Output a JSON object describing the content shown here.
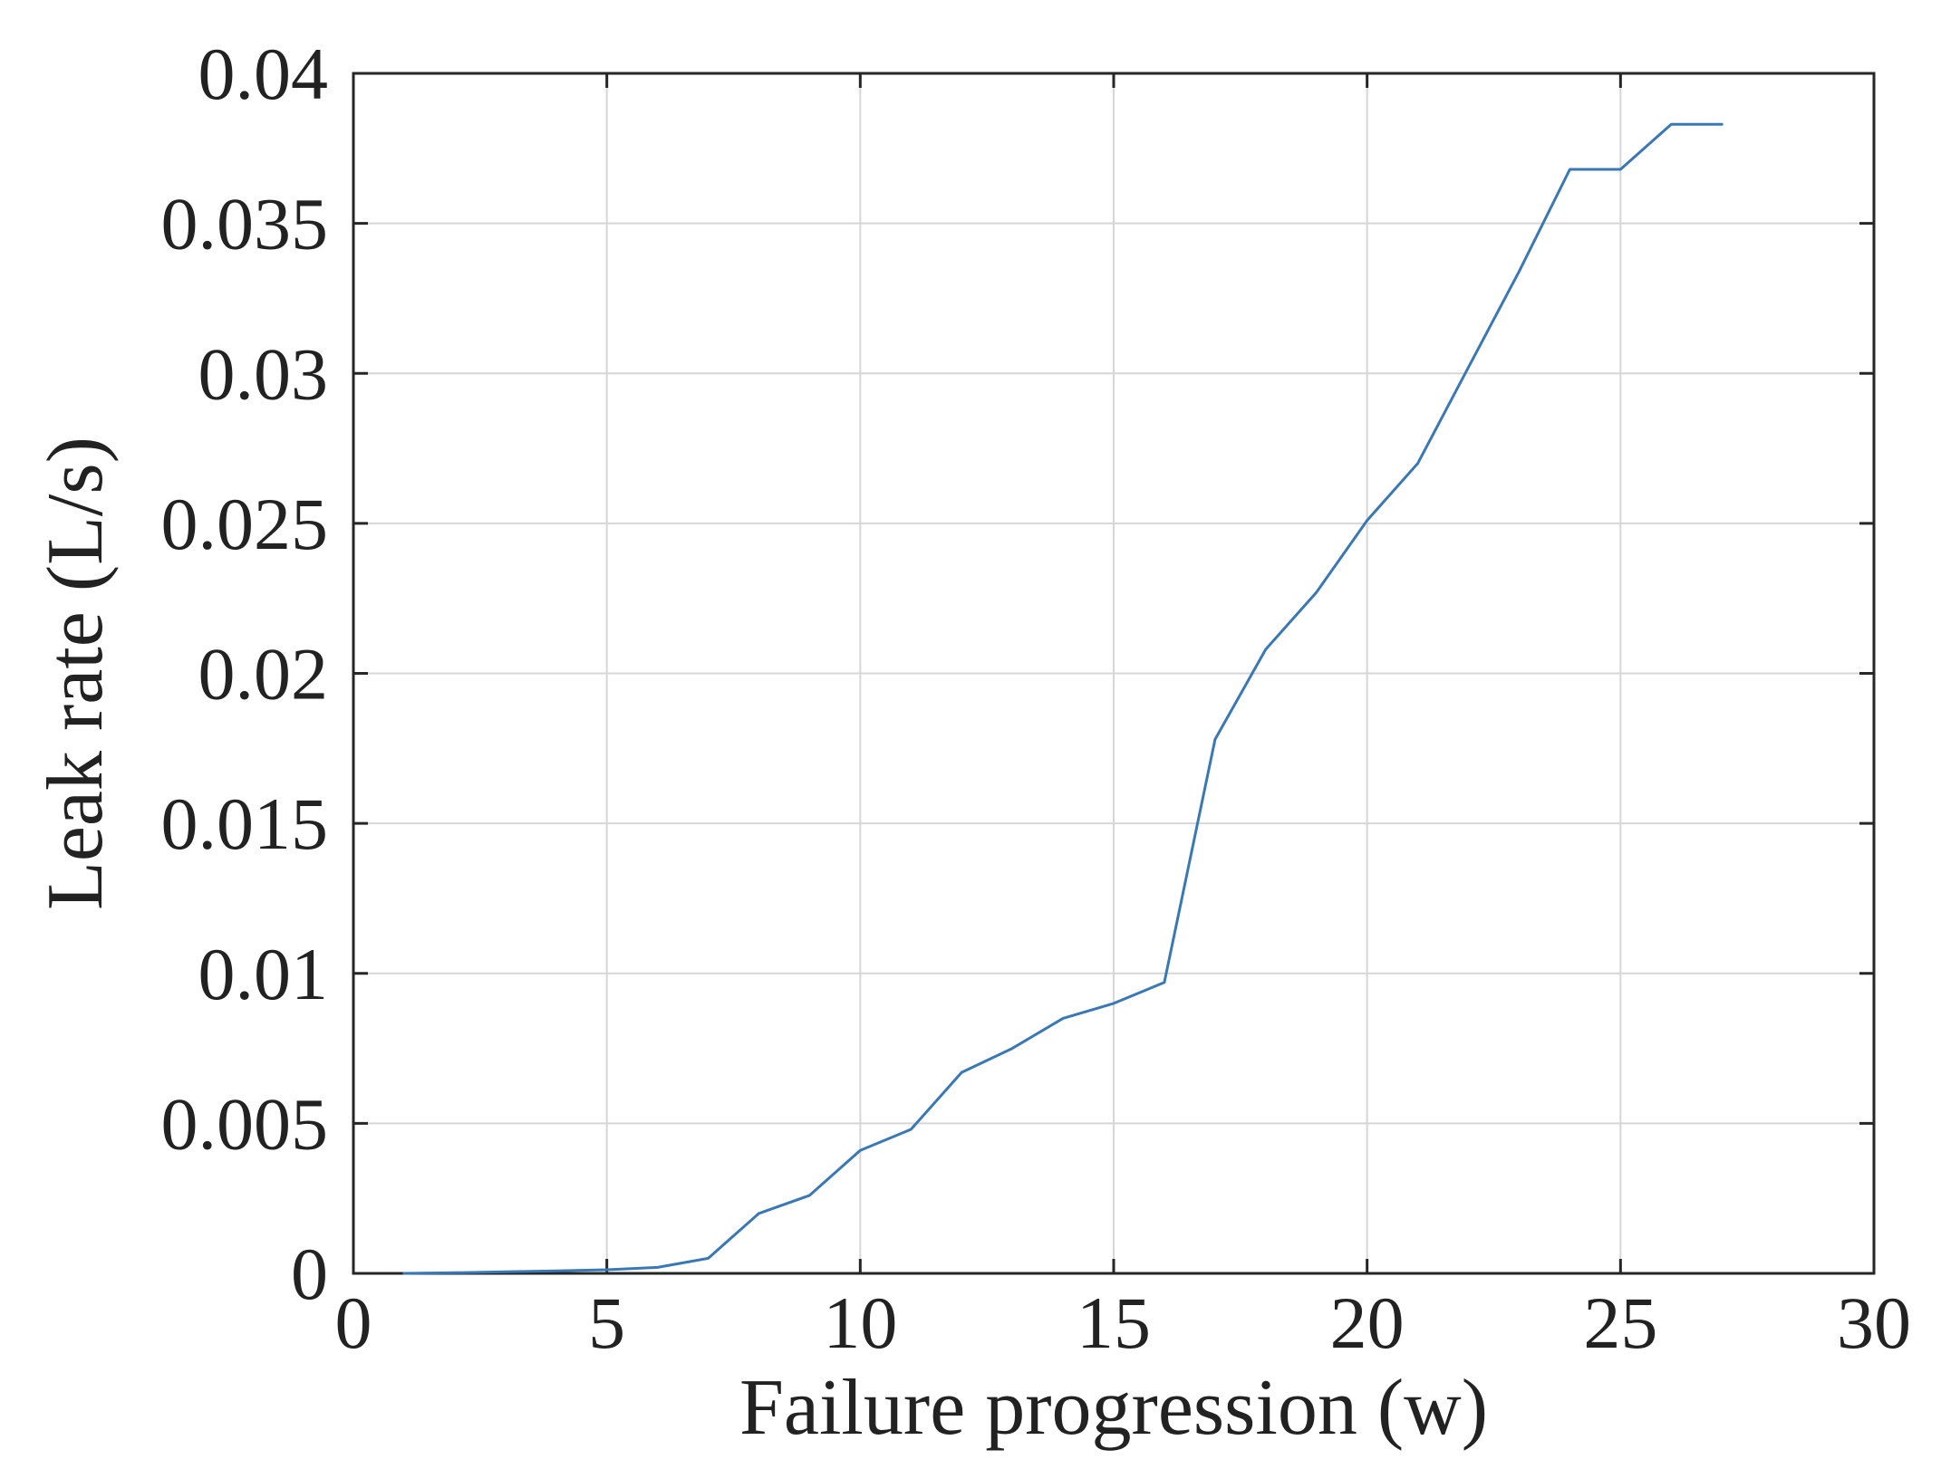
{
  "chart_data": {
    "type": "line",
    "title": "",
    "xlabel": "Failure progression (w)",
    "ylabel": "Leak rate (L/s)",
    "xlim": [
      0,
      30
    ],
    "ylim": [
      0,
      0.04
    ],
    "grid": true,
    "x_ticks": [
      0,
      5,
      10,
      15,
      20,
      25,
      30
    ],
    "x_tick_labels": [
      "0",
      "5",
      "10",
      "15",
      "20",
      "25",
      "30"
    ],
    "y_ticks": [
      0,
      0.005,
      0.01,
      0.015,
      0.02,
      0.025,
      0.03,
      0.035,
      0.04
    ],
    "y_tick_labels": [
      "0",
      "0.005",
      "0.01",
      "0.015",
      "0.02",
      "0.025",
      "0.03",
      "0.035",
      "0.04"
    ],
    "series_color": "#3a78b5",
    "series": [
      {
        "x": [
          1,
          2,
          3,
          4,
          5,
          6,
          7,
          8,
          9,
          10,
          11,
          12,
          13,
          14,
          15,
          16,
          17,
          18,
          19,
          20,
          21,
          22,
          23,
          24,
          25,
          26,
          27
        ],
        "y": [
          0.0,
          2e-05,
          5e-05,
          8e-05,
          0.00012,
          0.0002,
          0.0005,
          0.002,
          0.0026,
          0.0041,
          0.0048,
          0.0067,
          0.0075,
          0.0085,
          0.009,
          0.0097,
          0.0178,
          0.0208,
          0.0227,
          0.0251,
          0.027,
          0.0302,
          0.0334,
          0.0368,
          0.0368,
          0.0383,
          0.0383
        ]
      }
    ]
  }
}
